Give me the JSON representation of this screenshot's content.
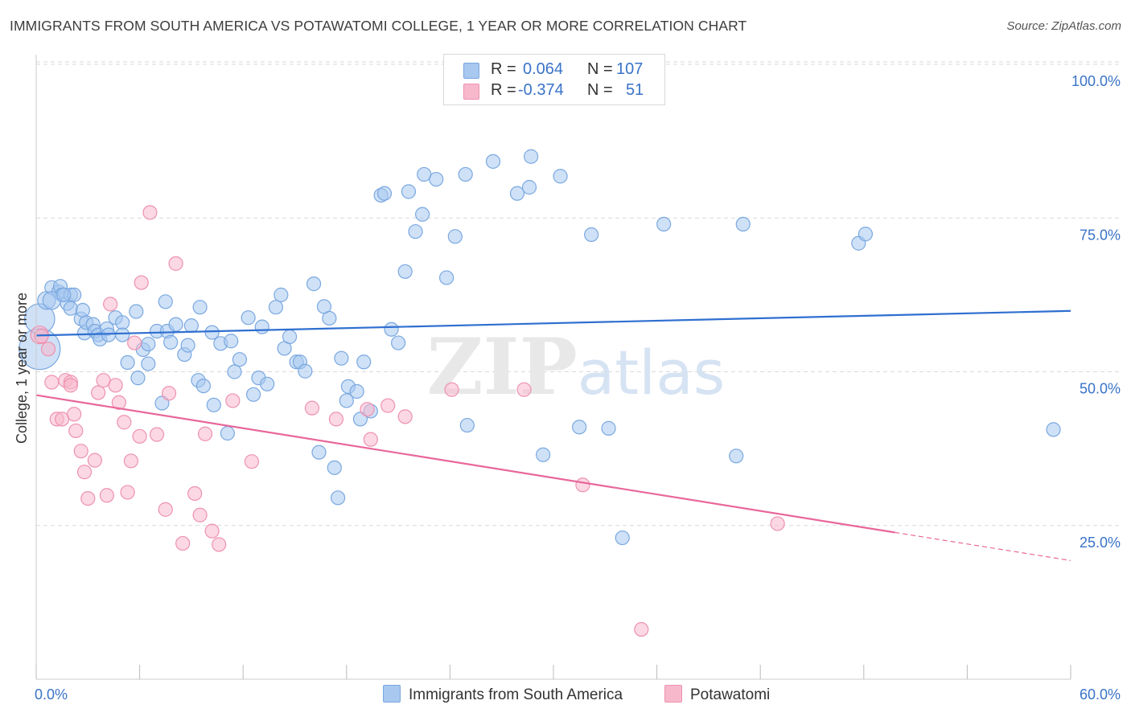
{
  "header": {
    "title": "IMMIGRANTS FROM SOUTH AMERICA VS POTAWATOMI COLLEGE, 1 YEAR OR MORE CORRELATION CHART",
    "source": "Source: ZipAtlas.com"
  },
  "watermark": "ZIPatlas",
  "legend": {
    "rows": [
      {
        "r_label": "R =",
        "r_value": "0.064",
        "n_label": "N =",
        "n_value": "107",
        "color": "#a8c8f0"
      },
      {
        "r_label": "R =",
        "r_value": "-0.374",
        "n_label": "N =",
        "n_value": "51",
        "color": "#f7b8cc"
      }
    ]
  },
  "bottom_legend": {
    "series1": "Immigrants from South America",
    "series2": "Potawatomi"
  },
  "colors": {
    "blue_fill": "#a8c8f0",
    "blue_stroke": "#7aa8e0",
    "blue_line": "#2f6fd0",
    "pink_fill": "#f7b8cc",
    "pink_stroke": "#ee92b0",
    "pink_line": "#e8679a",
    "axis_text": "#3a73c8",
    "grid": "#d9d9d9"
  },
  "chart_data": {
    "type": "scatter",
    "title": "IMMIGRANTS FROM SOUTH AMERICA VS POTAWATOMI COLLEGE, 1 YEAR OR MORE CORRELATION CHART",
    "xlabel": "",
    "ylabel": "College, 1 year or more",
    "xlim": [
      0,
      60
    ],
    "ylim": [
      0,
      100
    ],
    "x_tick_labels": [
      "0.0%",
      "60.0%"
    ],
    "y_tick_labels": [
      "25.0%",
      "50.0%",
      "75.0%",
      "100.0%"
    ],
    "y_ticks": [
      25,
      50,
      75,
      100
    ],
    "grid": "horizontal dashed",
    "legend_position": "top-center",
    "series": [
      {
        "name": "Immigrants from South America",
        "color": "#a8c8f0",
        "trend": {
          "x": [
            0,
            60
          ],
          "y": [
            55.9,
            59.9
          ],
          "dashed_from": null
        },
        "points": [
          [
            0.2,
            53.7,
            3.0
          ],
          [
            0.2,
            58.6,
            2.2
          ],
          [
            0.6,
            61.6,
            1.3
          ],
          [
            0.9,
            63.7,
            1.0
          ],
          [
            1.3,
            63.0,
            1.0
          ],
          [
            1.4,
            63.9,
            1.0
          ],
          [
            1.5,
            62.5,
            1.0
          ],
          [
            1.8,
            61.1,
            1.0
          ],
          [
            2.0,
            62.5,
            1.0
          ],
          [
            2.0,
            60.3,
            1.0
          ],
          [
            2.2,
            62.5,
            1.0
          ],
          [
            2.6,
            58.6,
            1.0
          ],
          [
            2.7,
            60.0,
            1.0
          ],
          [
            2.8,
            56.3,
            1.0
          ],
          [
            2.9,
            58.0,
            1.0
          ],
          [
            3.3,
            57.7,
            1.0
          ],
          [
            3.4,
            56.6,
            1.0
          ],
          [
            3.6,
            56.0,
            1.0
          ],
          [
            3.7,
            55.3,
            1.0
          ],
          [
            4.1,
            57.0,
            1.0
          ],
          [
            4.2,
            56.0,
            1.0
          ],
          [
            4.6,
            58.8,
            1.0
          ],
          [
            5.0,
            58.0,
            1.0
          ],
          [
            5.0,
            56.0,
            1.0
          ],
          [
            5.3,
            51.5,
            1.0
          ],
          [
            5.8,
            59.8,
            1.0
          ],
          [
            5.9,
            49.0,
            1.0
          ],
          [
            6.2,
            53.6,
            1.0
          ],
          [
            6.5,
            54.5,
            1.0
          ],
          [
            6.5,
            51.3,
            1.0
          ],
          [
            7.0,
            56.6,
            1.0
          ],
          [
            7.3,
            44.9,
            1.0
          ],
          [
            7.5,
            61.4,
            1.0
          ],
          [
            7.6,
            56.6,
            1.0
          ],
          [
            7.8,
            54.8,
            1.0
          ],
          [
            8.1,
            57.7,
            1.0
          ],
          [
            8.6,
            52.8,
            1.0
          ],
          [
            8.8,
            54.3,
            1.0
          ],
          [
            9.0,
            57.5,
            1.0
          ],
          [
            9.4,
            48.6,
            1.0
          ],
          [
            9.7,
            47.7,
            1.0
          ],
          [
            9.5,
            60.5,
            1.0
          ],
          [
            10.2,
            56.4,
            1.0
          ],
          [
            10.3,
            44.6,
            1.0
          ],
          [
            10.7,
            54.6,
            1.0
          ],
          [
            11.1,
            40.0,
            1.0
          ],
          [
            11.3,
            55.0,
            1.0
          ],
          [
            11.5,
            50.0,
            1.0
          ],
          [
            11.8,
            52.0,
            1.0
          ],
          [
            12.3,
            58.8,
            1.0
          ],
          [
            12.6,
            46.3,
            1.0
          ],
          [
            12.9,
            49.0,
            1.0
          ],
          [
            13.1,
            57.3,
            1.0
          ],
          [
            13.4,
            48.0,
            1.0
          ],
          [
            13.9,
            60.5,
            1.0
          ],
          [
            14.2,
            62.5,
            1.0
          ],
          [
            14.4,
            53.8,
            1.0
          ],
          [
            14.7,
            55.7,
            1.0
          ],
          [
            15.1,
            51.6,
            1.0
          ],
          [
            15.3,
            51.6,
            1.0
          ],
          [
            15.6,
            50.1,
            1.0
          ],
          [
            16.1,
            64.3,
            1.0
          ],
          [
            16.4,
            36.9,
            1.0
          ],
          [
            16.7,
            60.6,
            1.0
          ],
          [
            17.0,
            58.7,
            1.0
          ],
          [
            17.3,
            34.4,
            1.0
          ],
          [
            17.5,
            29.5,
            1.0
          ],
          [
            17.7,
            52.2,
            1.0
          ],
          [
            18.0,
            45.3,
            1.0
          ],
          [
            18.1,
            47.6,
            1.0
          ],
          [
            18.6,
            46.8,
            1.0
          ],
          [
            18.8,
            42.3,
            1.0
          ],
          [
            19.0,
            51.6,
            1.0
          ],
          [
            19.4,
            43.6,
            1.0
          ],
          [
            20.0,
            78.7,
            1.0
          ],
          [
            20.6,
            56.9,
            1.0
          ],
          [
            21.0,
            54.7,
            1.0
          ],
          [
            21.4,
            66.3,
            1.0
          ],
          [
            21.6,
            79.3,
            1.0
          ],
          [
            20.2,
            79.0,
            1.0
          ],
          [
            22.0,
            72.8,
            1.0
          ],
          [
            22.5,
            82.1,
            1.0
          ],
          [
            22.4,
            75.6,
            1.0
          ],
          [
            23.2,
            81.3,
            1.0
          ],
          [
            23.8,
            65.3,
            1.0
          ],
          [
            24.3,
            72.0,
            1.0
          ],
          [
            24.9,
            82.1,
            1.0
          ],
          [
            25.0,
            41.3,
            1.0
          ],
          [
            26.5,
            84.2,
            1.0
          ],
          [
            27.9,
            79.0,
            1.0
          ],
          [
            28.6,
            80.0,
            1.0
          ],
          [
            28.7,
            85.0,
            1.0
          ],
          [
            29.4,
            36.5,
            1.0
          ],
          [
            30.4,
            81.8,
            1.0
          ],
          [
            31.5,
            41.0,
            1.0
          ],
          [
            32.2,
            72.3,
            1.0
          ],
          [
            33.2,
            40.8,
            1.0
          ],
          [
            34.0,
            23.0,
            1.0
          ],
          [
            36.4,
            74.0,
            1.0
          ],
          [
            40.6,
            36.3,
            1.0
          ],
          [
            41.0,
            74.0,
            1.0
          ],
          [
            47.7,
            70.9,
            1.0
          ],
          [
            48.1,
            72.4,
            1.0
          ],
          [
            59.0,
            40.6,
            1.0
          ],
          [
            0.9,
            61.6,
            1.3
          ],
          [
            1.6,
            62.5,
            1.0
          ]
        ]
      },
      {
        "name": "Potawatomi",
        "color": "#f7b8cc",
        "trend": {
          "x": [
            0,
            60
          ],
          "y": [
            46.2,
            19.3
          ],
          "dashed_from": 49.8
        },
        "points": [
          [
            0.2,
            56.0,
            1.3
          ],
          [
            0.3,
            55.8,
            1.0
          ],
          [
            0.7,
            53.7,
            1.0
          ],
          [
            0.9,
            48.3,
            1.0
          ],
          [
            1.2,
            42.3,
            1.0
          ],
          [
            1.5,
            42.3,
            1.0
          ],
          [
            1.7,
            48.6,
            1.0
          ],
          [
            2.0,
            48.3,
            1.0
          ],
          [
            2.0,
            47.8,
            1.0
          ],
          [
            2.2,
            43.1,
            1.0
          ],
          [
            2.3,
            40.4,
            1.0
          ],
          [
            2.6,
            37.1,
            1.0
          ],
          [
            2.8,
            33.7,
            1.0
          ],
          [
            3.0,
            29.4,
            1.0
          ],
          [
            3.4,
            35.6,
            1.0
          ],
          [
            3.6,
            46.6,
            1.0
          ],
          [
            3.9,
            48.6,
            1.0
          ],
          [
            4.1,
            29.9,
            1.0
          ],
          [
            4.3,
            61.0,
            1.0
          ],
          [
            4.6,
            47.8,
            1.0
          ],
          [
            4.8,
            45.0,
            1.0
          ],
          [
            5.1,
            41.8,
            1.0
          ],
          [
            5.3,
            30.4,
            1.0
          ],
          [
            5.5,
            35.5,
            1.0
          ],
          [
            5.7,
            54.7,
            1.0
          ],
          [
            6.0,
            39.5,
            1.0
          ],
          [
            6.1,
            64.5,
            1.0
          ],
          [
            6.6,
            75.9,
            1.0
          ],
          [
            7.0,
            39.8,
            1.0
          ],
          [
            7.5,
            27.6,
            1.0
          ],
          [
            7.7,
            46.5,
            1.0
          ],
          [
            8.1,
            67.6,
            1.0
          ],
          [
            8.5,
            22.1,
            1.0
          ],
          [
            9.2,
            30.2,
            1.0
          ],
          [
            9.5,
            26.7,
            1.0
          ],
          [
            9.8,
            39.9,
            1.0
          ],
          [
            10.2,
            24.1,
            1.0
          ],
          [
            10.6,
            21.9,
            1.0
          ],
          [
            11.4,
            45.3,
            1.0
          ],
          [
            12.5,
            35.4,
            1.0
          ],
          [
            16.0,
            44.1,
            1.0
          ],
          [
            17.4,
            42.3,
            1.0
          ],
          [
            19.2,
            43.9,
            1.0
          ],
          [
            19.4,
            39.0,
            1.0
          ],
          [
            20.4,
            44.5,
            1.0
          ],
          [
            21.4,
            42.7,
            1.0
          ],
          [
            24.1,
            47.1,
            1.0
          ],
          [
            28.3,
            47.1,
            1.0
          ],
          [
            31.7,
            31.6,
            1.0
          ],
          [
            35.1,
            8.1,
            1.0
          ],
          [
            43.0,
            25.3,
            1.0
          ]
        ]
      }
    ]
  }
}
